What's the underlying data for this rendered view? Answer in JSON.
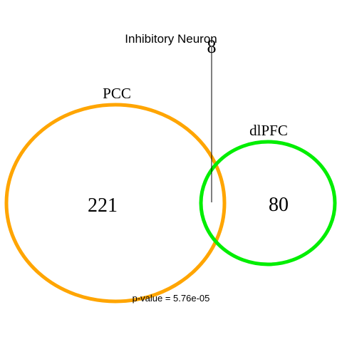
{
  "title": "Inhibitory Neuron",
  "sets": [
    {
      "label": "PCC",
      "only_count": "221",
      "color": "#FFA500"
    },
    {
      "label": "dlPFC",
      "only_count": "80",
      "color": "#00EE00"
    }
  ],
  "intersection_count": "8",
  "p_value_text": "p-value = 5.76e-05"
}
